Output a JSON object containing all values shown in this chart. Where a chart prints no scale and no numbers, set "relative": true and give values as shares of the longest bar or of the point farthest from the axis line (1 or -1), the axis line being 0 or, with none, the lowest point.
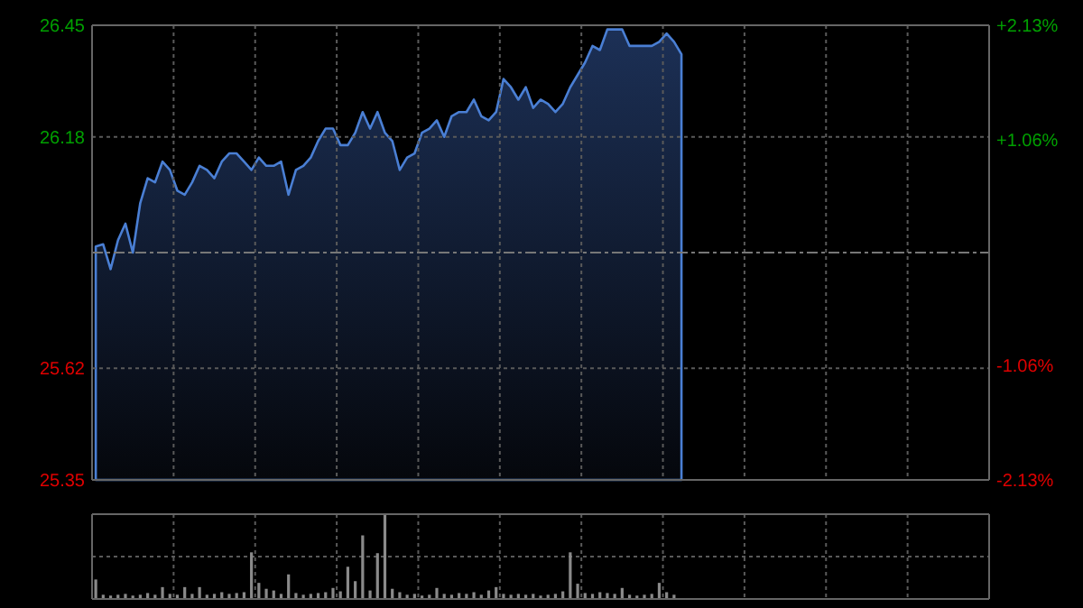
{
  "chart_data": [
    {
      "type": "area",
      "categories": [
        null,
        null,
        null,
        null,
        null,
        null,
        null,
        null,
        null,
        null,
        null,
        null,
        null,
        null,
        null,
        null,
        null,
        null,
        null,
        null,
        null,
        null,
        null,
        null,
        null,
        null,
        null,
        null,
        null,
        null,
        null,
        null,
        null,
        null,
        null,
        null,
        null,
        null,
        null,
        null,
        null,
        null,
        null,
        null,
        null,
        null,
        null,
        null,
        null,
        null,
        null,
        null,
        null,
        null,
        null,
        null,
        null,
        null,
        null,
        null,
        null,
        null,
        null,
        null,
        null,
        null,
        null,
        null,
        null,
        null,
        null,
        null,
        null,
        null,
        null,
        null,
        null,
        null,
        null,
        null
      ],
      "series": [
        {
          "color": "#4a7fd4",
          "values": [
            25.915,
            25.92,
            25.86,
            25.93,
            25.97,
            25.9,
            26.02,
            26.08,
            26.07,
            26.12,
            26.1,
            26.05,
            26.04,
            26.07,
            26.11,
            26.1,
            26.08,
            26.12,
            26.14,
            26.14,
            26.12,
            26.1,
            26.13,
            26.11,
            26.11,
            26.12,
            26.04,
            26.1,
            26.11,
            26.13,
            26.17,
            26.2,
            26.2,
            26.16,
            26.16,
            26.19,
            26.24,
            26.2,
            26.24,
            26.19,
            26.17,
            26.1,
            26.13,
            26.14,
            26.19,
            26.2,
            26.22,
            26.18,
            26.23,
            26.24,
            26.24,
            26.27,
            26.23,
            26.22,
            26.24,
            26.32,
            26.3,
            26.27,
            26.3,
            26.25,
            26.27,
            26.26,
            26.24,
            26.26,
            26.3,
            26.33,
            26.36,
            26.4,
            26.39,
            26.44,
            26.44,
            26.44,
            26.4,
            26.4,
            26.4,
            26.4,
            26.41,
            26.43,
            26.41,
            26.38
          ]
        }
      ],
      "ylim": [
        25.35,
        26.45
      ],
      "yticks": [
        25.35,
        25.62,
        26.18,
        26.45
      ],
      "y2lim": [
        -2.13,
        2.13
      ],
      "y2ticks": [
        {
          "value": -2.13,
          "label": "-2.13%"
        },
        {
          "value": -1.06,
          "label": "-1.06%"
        },
        {
          "value": 1.06,
          "label": "+1.06%"
        },
        {
          "value": 2.13,
          "label": "+2.13%"
        }
      ],
      "ref_lines": [
        {
          "axis": "y",
          "value": 25.9,
          "line_style": "dashed"
        }
      ],
      "grid": true,
      "tick_labels": "y"
    },
    {
      "type": "bar",
      "relative": true,
      "color": "#8a8a8a",
      "categories": [
        null,
        null,
        null,
        null,
        null,
        null,
        null,
        null,
        null,
        null,
        null,
        null,
        null,
        null,
        null,
        null,
        null,
        null,
        null,
        null,
        null,
        null,
        null,
        null,
        null,
        null,
        null,
        null,
        null,
        null,
        null,
        null,
        null,
        null,
        null,
        null,
        null,
        null,
        null,
        null,
        null,
        null,
        null,
        null,
        null,
        null,
        null,
        null,
        null,
        null,
        null,
        null,
        null,
        null,
        null,
        null,
        null,
        null,
        null,
        null,
        null,
        null,
        null,
        null,
        null,
        null,
        null,
        null,
        null,
        null,
        null,
        null,
        null,
        null,
        null,
        null,
        null,
        null,
        null,
        null
      ],
      "values": [
        0.23,
        0.05,
        0.04,
        0.05,
        0.06,
        0.04,
        0.05,
        0.07,
        0.05,
        0.14,
        0.06,
        0.05,
        0.14,
        0.06,
        0.14,
        0.05,
        0.06,
        0.08,
        0.06,
        0.07,
        0.08,
        0.55,
        0.19,
        0.12,
        0.1,
        0.06,
        0.29,
        0.07,
        0.05,
        0.06,
        0.07,
        0.08,
        0.13,
        0.09,
        0.38,
        0.21,
        0.75,
        0.1,
        0.54,
        1,
        0.12,
        0.08,
        0.05,
        0.06,
        0.04,
        0.05,
        0.13,
        0.06,
        0.05,
        0.07,
        0.06,
        0.08,
        0.05,
        0.1,
        0.14,
        0.06,
        0.05,
        0.06,
        0.05,
        0.06,
        0.04,
        0.05,
        0.06,
        0.09,
        0.55,
        0.18,
        0.07,
        0.06,
        0.08,
        0.07,
        0.06,
        0.13,
        0.05,
        0.04,
        0.05,
        0.06,
        0.19,
        0.08,
        0.05,
        null
      ],
      "grid": true
    }
  ]
}
